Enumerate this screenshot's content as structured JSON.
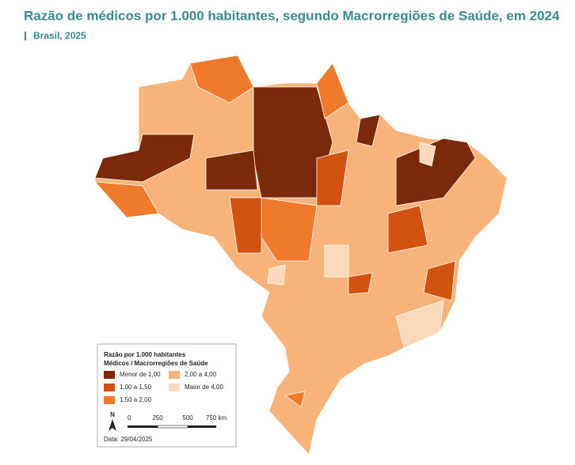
{
  "header": {
    "title": "Razão de médicos por 1.000 habitantes, segundo Macrorregiões de Saúde, em 2024",
    "subtitle": "Brasil, 2025"
  },
  "legend": {
    "title_lines": [
      "Razão por 1.000 habitantes",
      "Médicos / Macrorregiões de Saúde"
    ],
    "items": [
      {
        "label": "Menor de 1,00",
        "color": "#7a2a0a"
      },
      {
        "label": "2,00 a 4,00",
        "color": "#f8b37a"
      },
      {
        "label": "1,00 a 1,50",
        "color": "#d2520f"
      },
      {
        "label": "Maior de 4,00",
        "color": "#fcd9ba"
      },
      {
        "label": "1,50 a 2,00",
        "color": "#f07a2c"
      }
    ]
  },
  "scale": {
    "north": "N",
    "labels": [
      "0",
      "250",
      "500",
      "750 km"
    ]
  },
  "footer": {
    "date": "Data: 29/04/2025"
  }
}
